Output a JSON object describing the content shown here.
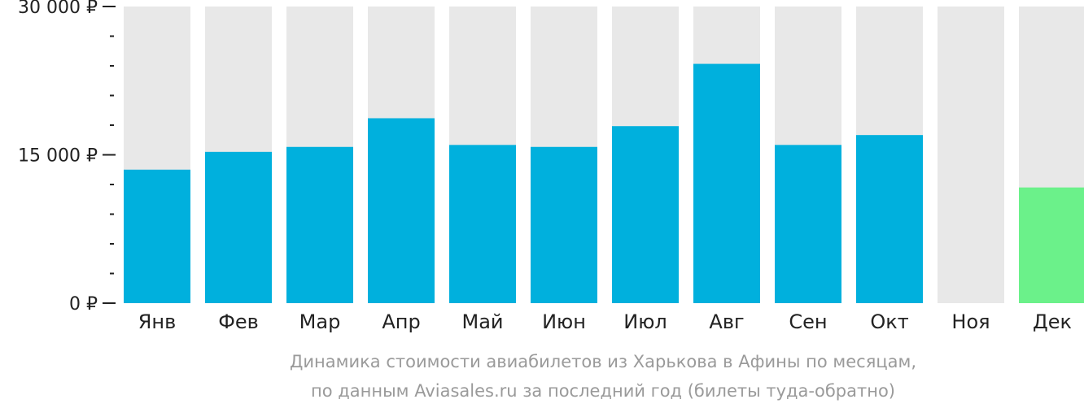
{
  "chart_data": {
    "type": "bar",
    "categories": [
      "Янв",
      "Фев",
      "Мар",
      "Апр",
      "Май",
      "Июн",
      "Июл",
      "Авг",
      "Сен",
      "Окт",
      "Ноя",
      "Дек"
    ],
    "values": [
      13500,
      15300,
      15800,
      18700,
      16000,
      15800,
      17900,
      24200,
      16000,
      17000,
      null,
      11700
    ],
    "highlight_index": 11,
    "ylim": [
      0,
      30000
    ],
    "yticks": [
      {
        "value": 0,
        "label": "0 ₽"
      },
      {
        "value": 15000,
        "label": "15 000 ₽"
      },
      {
        "value": 30000,
        "label": "30 000 ₽"
      }
    ],
    "minor_tick_step": 3000,
    "caption_lines": [
      "Динамика стоимости авиабилетов из Харькова в Афины по месяцам,",
      "по данным Aviasales.ru за последний год (билеты туда-обратно)"
    ],
    "colors": {
      "bar": "#00b0dd",
      "highlight": "#6bf18a",
      "background_column": "#e8e8e8",
      "axis": "#222222",
      "caption": "#9a9a9a"
    },
    "xlabel": "",
    "ylabel": "",
    "grid": false,
    "legend": "none"
  }
}
